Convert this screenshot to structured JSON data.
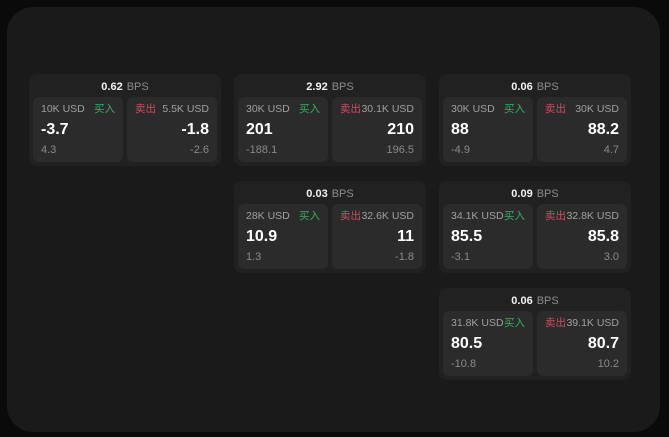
{
  "labels": {
    "bps_unit": "BPS"
  },
  "colors": {
    "outer_background": "#0a0a0a",
    "panel_background": "#1a1a1a",
    "card_background": "#212121",
    "subpanel_background": "#2b2b2b",
    "buy_green": "#3cab67",
    "sell_red": "#cb4d62"
  },
  "cards": [
    {
      "bps": "0.62",
      "buy": {
        "amount": "10K USD",
        "side_label": "买入",
        "value": "-3.7",
        "delta": "4.3"
      },
      "sell": {
        "amount": "5.5K USD",
        "side_label": "卖出",
        "value": "-1.8",
        "delta": "-2.6"
      }
    },
    {
      "bps": "2.92",
      "buy": {
        "amount": "30K USD",
        "side_label": "买入",
        "value": "201",
        "delta": "-188.1"
      },
      "sell": {
        "amount": "30.1K USD",
        "side_label": "卖出",
        "value": "210",
        "delta": "196.5"
      }
    },
    {
      "bps": "0.06",
      "buy": {
        "amount": "30K USD",
        "side_label": "买入",
        "value": "88",
        "delta": "-4.9"
      },
      "sell": {
        "amount": "30K USD",
        "side_label": "卖出",
        "value": "88.2",
        "delta": "4.7"
      }
    },
    {
      "bps": "0.03",
      "buy": {
        "amount": "28K USD",
        "side_label": "买入",
        "value": "10.9",
        "delta": "1.3"
      },
      "sell": {
        "amount": "32.6K USD",
        "side_label": "卖出",
        "value": "11",
        "delta": "-1.8"
      }
    },
    {
      "bps": "0.09",
      "buy": {
        "amount": "34.1K USD",
        "side_label": "买入",
        "value": "85.5",
        "delta": "-3.1"
      },
      "sell": {
        "amount": "32.8K USD",
        "side_label": "卖出",
        "value": "85.8",
        "delta": "3.0"
      }
    },
    {
      "bps": "0.06",
      "buy": {
        "amount": "31.8K USD",
        "side_label": "买入",
        "value": "80.5",
        "delta": "-10.8"
      },
      "sell": {
        "amount": "39.1K USD",
        "side_label": "卖出",
        "value": "80.7",
        "delta": "10.2"
      }
    }
  ]
}
